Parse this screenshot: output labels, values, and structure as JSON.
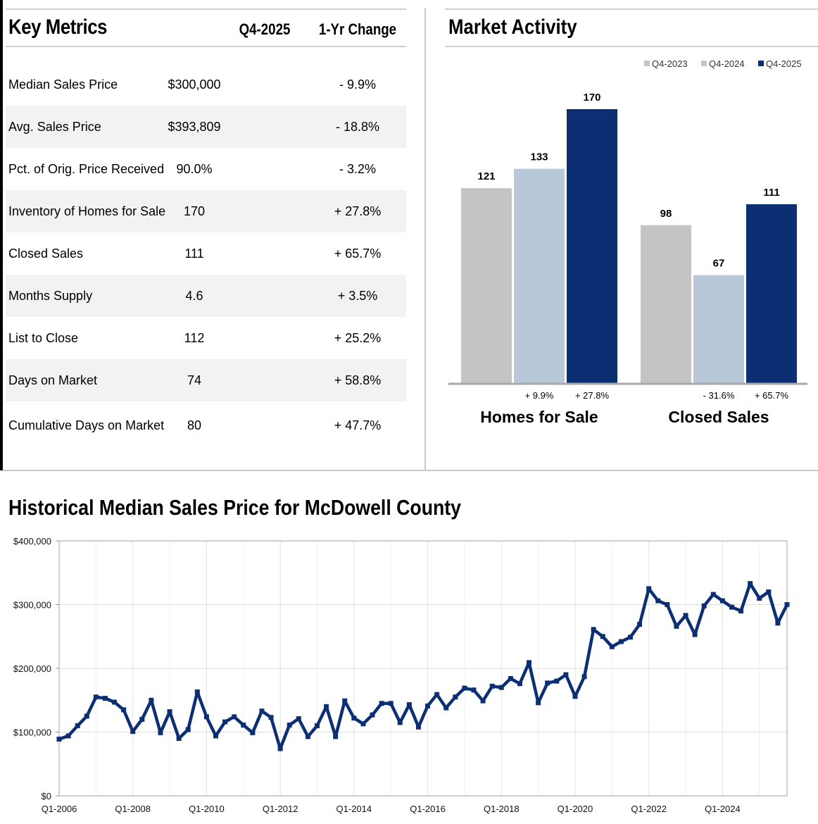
{
  "key_metrics": {
    "title": "Key Metrics",
    "col_period": "Q4-2025",
    "col_change": "1-Yr Change",
    "rows": [
      {
        "name": "Median Sales Price",
        "value": "$300,000",
        "change": "- 9.9%"
      },
      {
        "name": "Avg. Sales Price",
        "value": "$393,809",
        "change": "- 18.8%"
      },
      {
        "name": "Pct. of Orig. Price Received",
        "value": "90.0%",
        "change": "- 3.2%"
      },
      {
        "name": "Inventory of Homes for Sale",
        "value": "170",
        "change": "+ 27.8%"
      },
      {
        "name": "Closed Sales",
        "value": "111",
        "change": "+ 65.7%"
      },
      {
        "name": "Months Supply",
        "value": "4.6",
        "change": "+ 3.5%"
      },
      {
        "name": "List to Close",
        "value": "112",
        "change": "+ 25.2%"
      },
      {
        "name": "Days on Market",
        "value": "74",
        "change": "+ 58.8%"
      },
      {
        "name": "Cumulative Days on Market",
        "value": "80",
        "change": "+ 47.7%"
      }
    ]
  },
  "market_activity_title": "Market Activity",
  "historical_title": "Historical Median Sales Price for McDowell County",
  "chart_data": [
    {
      "type": "bar",
      "title": "Market Activity",
      "categories": [
        "Homes for Sale",
        "Closed Sales"
      ],
      "series": [
        {
          "name": "Q4-2023",
          "values": [
            121,
            98
          ],
          "color": "#c4c4c4"
        },
        {
          "name": "Q4-2024",
          "values": [
            133,
            67
          ],
          "color": "#b8c8d8"
        },
        {
          "name": "Q4-2025",
          "values": [
            170,
            111
          ],
          "color": "#0c2f74"
        }
      ],
      "value_labels": [
        [
          "121",
          "133",
          "170"
        ],
        [
          "98",
          "67",
          "111"
        ]
      ],
      "change_labels": [
        [
          "+ 9.9%",
          "+ 27.8%"
        ],
        [
          "- 31.6%",
          "+ 65.7%"
        ]
      ],
      "legend_position": "top-right",
      "ylim": [
        0,
        170
      ]
    },
    {
      "type": "line",
      "title": "Historical Median Sales Price for McDowell County",
      "series_color": "#0c2f74",
      "ylim": [
        0,
        400000
      ],
      "y_ticks": [
        "$0",
        "$100,000",
        "$200,000",
        "$300,000",
        "$400,000"
      ],
      "y_tick_values": [
        0,
        100000,
        200000,
        300000,
        400000
      ],
      "x_tick_labels": [
        "Q1-2006",
        "Q1-2008",
        "Q1-2010",
        "Q1-2012",
        "Q1-2014",
        "Q1-2016",
        "Q1-2018",
        "Q1-2020",
        "Q1-2022",
        "Q1-2024"
      ],
      "x_start": "Q1-2006",
      "x_end": "Q4-2025",
      "values": [
        89000,
        94000,
        110000,
        125000,
        155000,
        153000,
        147000,
        135000,
        101000,
        120000,
        150000,
        99000,
        132000,
        90000,
        104000,
        163000,
        124000,
        94000,
        116000,
        124000,
        111000,
        99000,
        133000,
        123000,
        74000,
        111000,
        121000,
        93000,
        110000,
        140000,
        93000,
        149000,
        122000,
        113000,
        127000,
        145000,
        145000,
        115000,
        143000,
        108000,
        141000,
        159000,
        138000,
        155000,
        169000,
        166000,
        149000,
        172000,
        170000,
        184000,
        176000,
        209000,
        146000,
        177000,
        180000,
        190000,
        156000,
        187000,
        261000,
        250000,
        234000,
        242000,
        249000,
        269000,
        325000,
        306000,
        300000,
        266000,
        283000,
        253000,
        298000,
        316000,
        306000,
        296000,
        290000,
        333000,
        310000,
        320000,
        271000,
        300000
      ]
    }
  ]
}
